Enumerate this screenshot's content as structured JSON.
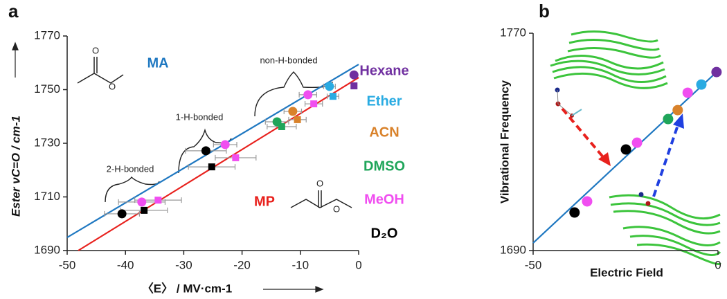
{
  "chart_data": [
    {
      "type": "scatter",
      "panel": "a",
      "xlabel": "〈E〉 / MV·cm-1",
      "ylabel": "Ester νC=O / cm-1",
      "xlim": [
        -50,
        0
      ],
      "ylim": [
        1690,
        1770
      ],
      "xticks": [
        -50,
        -40,
        -30,
        -20,
        -10,
        0
      ],
      "yticks": [
        1690,
        1710,
        1730,
        1750,
        1770
      ],
      "annotations": [
        "non-H-bonded",
        "1-H-bonded",
        "2-H-bonded"
      ],
      "lines": [
        {
          "name": "MA",
          "color": "#1f78c1",
          "x": [
            -50,
            0
          ],
          "y": [
            1694.9,
            1759.4
          ]
        },
        {
          "name": "MP",
          "color": "#e8211d",
          "x": [
            -48.1,
            0
          ],
          "y": [
            1690,
            1754.5
          ]
        }
      ],
      "series": [
        {
          "name": "Hexane",
          "color": "#7030a0",
          "circles": {
            "x": [
              -0.8
            ],
            "y": [
              1755.5
            ],
            "xerr": [
              0.5
            ]
          },
          "squares": {
            "x": [
              -0.8
            ],
            "y": [
              1751.4
            ],
            "xerr": [
              0.5
            ]
          }
        },
        {
          "name": "Ether",
          "color": "#29abe2",
          "circles": {
            "x": [
              -5.0
            ],
            "y": [
              1751.2
            ],
            "xerr": [
              1
            ]
          },
          "squares": {
            "x": [
              -4.4
            ],
            "y": [
              1747.5
            ],
            "xerr": [
              1
            ]
          }
        },
        {
          "name": "ACN",
          "color": "#d9822b",
          "circles": {
            "x": [
              -11.3
            ],
            "y": [
              1741.9
            ],
            "xerr": [
              1.5
            ]
          },
          "squares": {
            "x": [
              -10.5
            ],
            "y": [
              1738.8
            ],
            "xerr": [
              1.5
            ]
          }
        },
        {
          "name": "DMSO",
          "color": "#1fa55a",
          "circles": {
            "x": [
              -14.0
            ],
            "y": [
              1738.0
            ],
            "xerr": [
              2
            ]
          },
          "squares": {
            "x": [
              -13.2
            ],
            "y": [
              1736.2
            ],
            "xerr": [
              2.5
            ]
          }
        },
        {
          "name": "MeOH",
          "color": "#f04ef0",
          "circles": {
            "x": [
              -8.7,
              -22.9,
              -37.2
            ],
            "y": [
              1748.1,
              1729.5,
              1708.1
            ],
            "xerr": [
              1.5,
              2,
              4
            ]
          },
          "squares": {
            "x": [
              -7.7,
              -21.1,
              -34.4
            ],
            "y": [
              1744.7,
              1724.6,
              1708.8
            ],
            "xerr": [
              1.5,
              3.5,
              4
            ]
          }
        },
        {
          "name": "D₂O",
          "color": "#000000",
          "circles": {
            "x": [
              -26.2,
              -40.6
            ],
            "y": [
              1727.2,
              1703.7
            ],
            "xerr": [
              3.5,
              3
            ]
          },
          "squares": {
            "x": [
              -25.2,
              -36.8
            ],
            "y": [
              1721.2,
              1705.0
            ],
            "xerr": [
              4,
              4
            ]
          }
        }
      ]
    },
    {
      "type": "scatter",
      "panel": "b",
      "xlabel": "Electric Field",
      "ylabel": "Vibrational Frequency",
      "xlim": [
        -50,
        0
      ],
      "ylim": [
        1690,
        1770
      ],
      "xticks": [
        -50,
        0
      ],
      "yticks": [
        1690,
        1770
      ],
      "line": {
        "color": "#1f78c1",
        "x": [
          -50,
          0
        ],
        "y": [
          1692.8,
          1756.2
        ]
      },
      "points": {
        "x": [
          -38.8,
          -35.4,
          -24.9,
          -21.9,
          -13.5,
          -10.9,
          -8.2,
          -4.5,
          -0.4
        ],
        "y": [
          1704.0,
          1708.1,
          1727.2,
          1729.7,
          1738.4,
          1741.7,
          1748.1,
          1751.1,
          1755.7
        ],
        "colors": [
          "#000000",
          "#f04ef0",
          "#000000",
          "#f04ef0",
          "#1fa55a",
          "#d9822b",
          "#f04ef0",
          "#29abe2",
          "#7030a0"
        ]
      }
    }
  ]
}
